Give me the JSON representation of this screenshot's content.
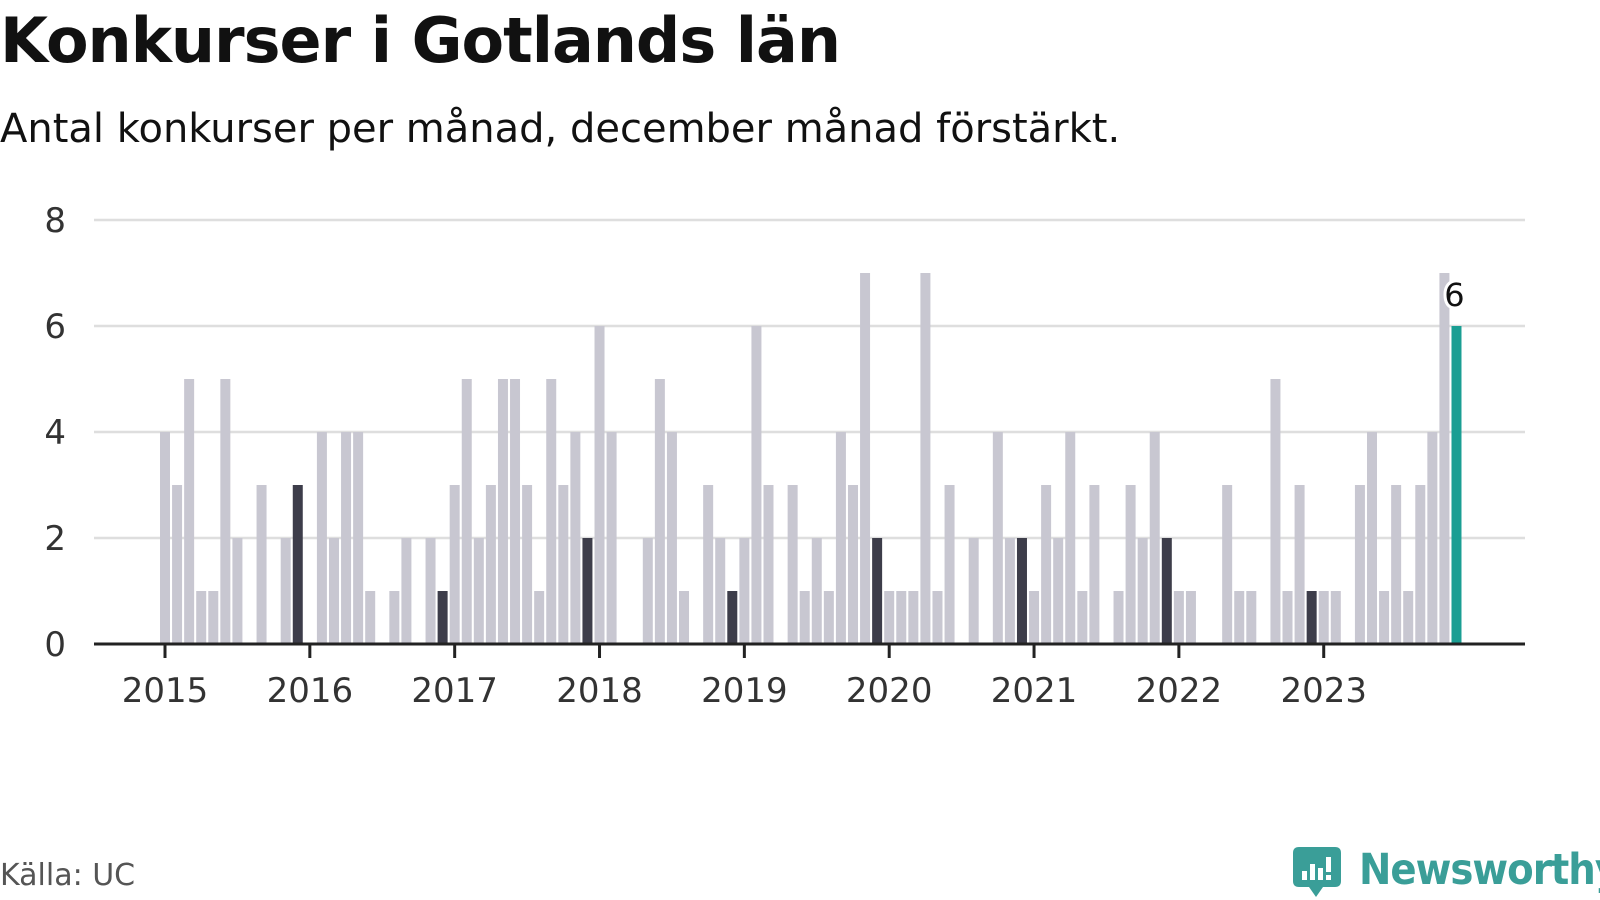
{
  "header": {
    "title": "Konkurser i Gotlands län",
    "subtitle": "Antal konkurser per månad, december månad förstärkt."
  },
  "footer": {
    "source": "Källa: UC",
    "brand": "Newsworthy"
  },
  "colors": {
    "bar": "#c8c7d1",
    "december": "#3d3d4a",
    "latest": "#1a9e93",
    "grid": "#dedede",
    "axis": "#222222",
    "brand": "#3a9e98"
  },
  "chart_data": {
    "type": "bar",
    "start": "2015-01",
    "x_tick_labels": [
      "2015",
      "2016",
      "2017",
      "2018",
      "2019",
      "2020",
      "2021",
      "2022",
      "2023"
    ],
    "y_ticks": [
      0,
      2,
      4,
      6,
      8
    ],
    "ylim": [
      0,
      8
    ],
    "grid": true,
    "highlight_note": "december bars darker; latest month highlighted",
    "latest_label": "6",
    "series": [
      {
        "values": [
          4,
          3,
          5,
          1,
          1,
          5,
          2,
          0,
          3,
          0,
          2,
          3,
          0,
          4,
          2,
          4,
          4,
          1,
          0,
          1,
          2,
          0,
          2,
          1,
          3,
          5,
          2,
          3,
          5,
          5,
          3,
          1,
          5,
          3,
          4,
          2,
          6,
          4,
          0,
          0,
          2,
          5,
          4,
          1,
          0,
          3,
          2,
          1,
          2,
          6,
          3,
          0,
          3,
          1,
          2,
          1,
          4,
          3,
          7,
          2,
          1,
          1,
          1,
          7,
          1,
          3,
          0,
          2,
          0,
          4,
          2,
          2,
          1,
          3,
          2,
          4,
          1,
          3,
          0,
          1,
          3,
          2,
          4,
          2,
          1,
          1,
          0,
          0,
          3,
          1,
          1,
          0,
          5,
          1,
          3,
          1,
          1,
          1,
          0,
          3,
          4,
          1,
          3,
          1,
          3,
          4,
          7,
          6
        ]
      }
    ]
  }
}
